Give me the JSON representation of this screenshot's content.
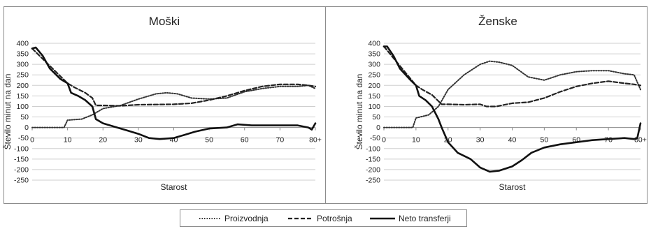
{
  "legend": {
    "placement": "bottom-center",
    "items": [
      {
        "label": "Proizvodnja",
        "style": "dotted"
      },
      {
        "label": "Potrošnja",
        "style": "dashed"
      },
      {
        "label": "Neto transferji",
        "style": "solid"
      }
    ]
  },
  "chart_data": [
    {
      "type": "line",
      "title": "Moški",
      "xlabel": "Starost",
      "ylabel": "Število minut na dan",
      "xlim": [
        0,
        80
      ],
      "ylim": [
        -250,
        400
      ],
      "x_ticks": [
        "0",
        "10",
        "20",
        "30",
        "40",
        "50",
        "60",
        "70",
        "80+"
      ],
      "y_ticks": [
        -250,
        -200,
        -150,
        -100,
        -50,
        0,
        50,
        100,
        150,
        200,
        250,
        300,
        350,
        400
      ],
      "grid": "horizontal",
      "series": [
        {
          "name": "Proizvodnja",
          "x": [
            0,
            9,
            10,
            14,
            17,
            20,
            25,
            30,
            35,
            38,
            41,
            45,
            50,
            55,
            60,
            65,
            70,
            75,
            78,
            80
          ],
          "y": [
            0,
            0,
            35,
            40,
            60,
            90,
            105,
            135,
            160,
            165,
            160,
            140,
            135,
            140,
            170,
            185,
            195,
            195,
            200,
            185
          ]
        },
        {
          "name": "Potrošnja",
          "x": [
            0,
            10,
            12,
            15,
            17,
            18,
            20,
            25,
            30,
            40,
            45,
            50,
            55,
            60,
            65,
            70,
            75,
            78,
            80
          ],
          "y": [
            375,
            210,
            190,
            165,
            140,
            105,
            105,
            103,
            108,
            110,
            115,
            130,
            150,
            175,
            195,
            205,
            205,
            200,
            195
          ]
        },
        {
          "name": "Neto transferji",
          "x": [
            0,
            1,
            3,
            5,
            8,
            10,
            11,
            13,
            15,
            17,
            18,
            20,
            23,
            27,
            30,
            33,
            36,
            40,
            43,
            46,
            50,
            55,
            58,
            62,
            65,
            70,
            75,
            78,
            79,
            80
          ],
          "y": [
            375,
            380,
            340,
            280,
            230,
            210,
            165,
            150,
            130,
            100,
            40,
            20,
            5,
            -15,
            -30,
            -50,
            -55,
            -50,
            -35,
            -20,
            -5,
            0,
            15,
            10,
            10,
            10,
            10,
            0,
            -10,
            20
          ]
        }
      ]
    },
    {
      "type": "line",
      "title": "Ženske",
      "xlabel": "Starost",
      "ylabel": "Število minut na dan",
      "xlim": [
        0,
        80
      ],
      "ylim": [
        -250,
        400
      ],
      "x_ticks": [
        "0",
        "10",
        "20",
        "30",
        "40",
        "50",
        "60",
        "70",
        "80+"
      ],
      "y_ticks": [
        -250,
        -200,
        -150,
        -100,
        -50,
        0,
        50,
        100,
        150,
        200,
        250,
        300,
        350,
        400
      ],
      "grid": "horizontal",
      "series": [
        {
          "name": "Proizvodnja",
          "x": [
            0,
            9,
            10,
            14,
            17,
            20,
            25,
            30,
            33,
            36,
            40,
            45,
            50,
            55,
            60,
            65,
            70,
            75,
            78,
            80
          ],
          "y": [
            0,
            0,
            45,
            60,
            100,
            180,
            250,
            300,
            315,
            310,
            295,
            240,
            225,
            250,
            265,
            270,
            270,
            255,
            250,
            180
          ]
        },
        {
          "name": "Potrošnja",
          "x": [
            0,
            10,
            12,
            15,
            17,
            18,
            20,
            25,
            30,
            32,
            35,
            40,
            45,
            50,
            55,
            60,
            65,
            70,
            75,
            78,
            80
          ],
          "y": [
            385,
            200,
            180,
            155,
            125,
            110,
            110,
            108,
            110,
            100,
            100,
            115,
            120,
            140,
            170,
            195,
            210,
            220,
            210,
            205,
            200
          ]
        },
        {
          "name": "Neto transferji",
          "x": [
            0,
            1,
            3,
            5,
            8,
            10,
            11,
            13,
            15,
            17,
            18,
            20,
            23,
            27,
            30,
            33,
            36,
            40,
            43,
            46,
            50,
            55,
            60,
            65,
            70,
            75,
            78,
            79,
            80
          ],
          "y": [
            385,
            385,
            340,
            280,
            230,
            200,
            150,
            130,
            100,
            40,
            0,
            -70,
            -120,
            -150,
            -190,
            -210,
            -205,
            -185,
            -155,
            -120,
            -95,
            -80,
            -70,
            -60,
            -55,
            -50,
            -55,
            -50,
            20
          ]
        }
      ]
    }
  ]
}
